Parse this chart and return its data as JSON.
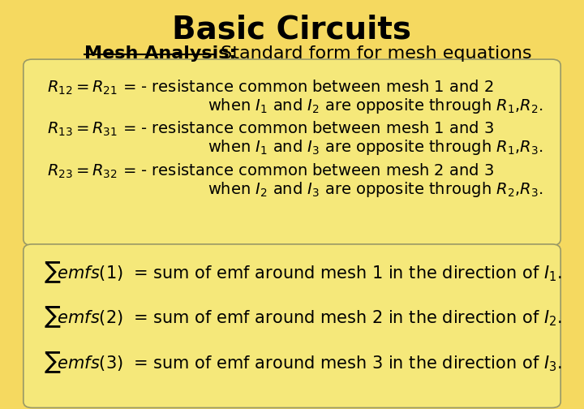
{
  "bg_color": "#F5D960",
  "box_facecolor": "#F5E87A",
  "box_edgecolor": "#999966",
  "title": "Basic Circuits",
  "subtitle_bold": "Mesh Analysis:",
  "subtitle_normal": " Standard form for mesh equations",
  "text_color": "#000000",
  "title_fontsize": 28,
  "subtitle_fontsize": 16,
  "body_fontsize": 14,
  "emf_fontsize": 15
}
